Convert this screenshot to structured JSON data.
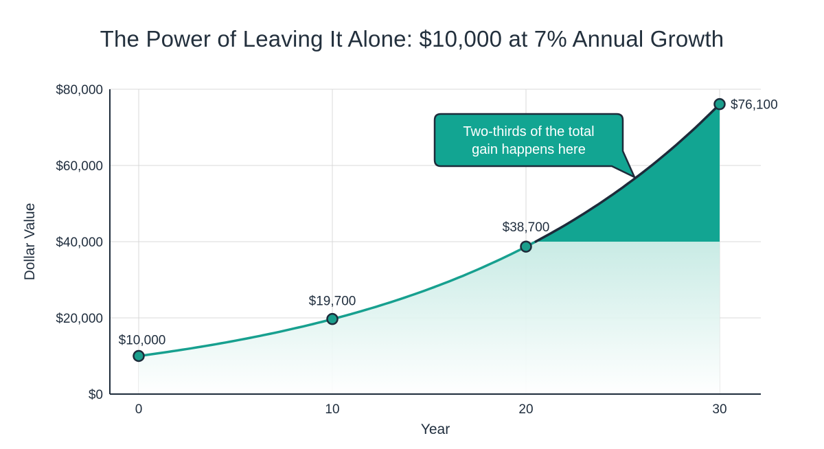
{
  "chart_data": {
    "type": "line",
    "title": "The Power of Leaving It Alone: $10,000 at 7% Annual Growth",
    "xlabel": "Year",
    "ylabel": "Dollar Value",
    "x_ticks": [
      "0",
      "10",
      "20",
      "30"
    ],
    "y_ticks": [
      "$0",
      "$20,000",
      "$40,000",
      "$60,000",
      "$80,000"
    ],
    "xlim": [
      0,
      30
    ],
    "ylim": [
      0,
      80000
    ],
    "grid": true,
    "series": [
      {
        "x": [
          0,
          10,
          20,
          30
        ],
        "values": [
          10000,
          19700,
          38700,
          76100
        ],
        "labels": [
          "$10,000",
          "$19,700",
          "$38,700",
          "$76,100"
        ]
      }
    ],
    "annotation": {
      "lines": [
        "Two-thirds of the total",
        "gain happens here"
      ]
    },
    "colors": {
      "line": "#17a08f",
      "highlight_fill": "#12a592",
      "marker_fill": "#1a9e8c",
      "dark": "#1d2b3a",
      "grid": "#d8d8d8"
    }
  }
}
